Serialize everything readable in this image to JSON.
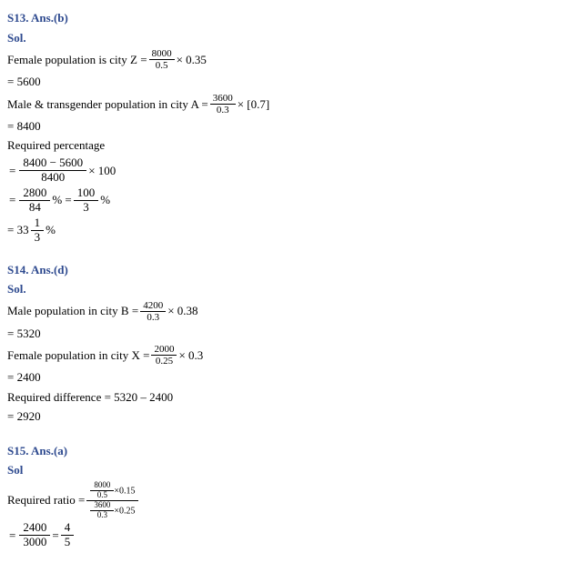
{
  "s13": {
    "heading": "S13. Ans.(b)",
    "sol": "Sol.",
    "line1_a": "Female population is city Z = ",
    "line1_frac_num": "8000",
    "line1_frac_den": "0.5",
    "line1_b": " × 0.35",
    "line2": "= 5600",
    "line3_a": "Male & transgender population in city A = ",
    "line3_frac_num": "3600",
    "line3_frac_den": "0.3",
    "line3_b": " × [0.7]",
    "line4": "= 8400",
    "line5": "Required percentage",
    "line6_eq": "= ",
    "line6_frac_num": "8400 − 5600",
    "line6_frac_den": "8400",
    "line6_b": " × 100",
    "line7_eq": "= ",
    "line7_frac1_num": "2800",
    "line7_frac1_den": "84",
    "line7_mid": "% = ",
    "line7_frac2_num": "100",
    "line7_frac2_den": "3",
    "line7_end": " %",
    "line8_a": "= 33",
    "line8_frac_num": "1",
    "line8_frac_den": "3",
    "line8_b": " %"
  },
  "s14": {
    "heading": "S14. Ans.(d)",
    "sol": "Sol.",
    "line1_a": "Male population in city B = ",
    "line1_frac_num": "4200",
    "line1_frac_den": "0.3",
    "line1_b": " × 0.38",
    "line2": "= 5320",
    "line3_a": "Female population in city X = ",
    "line3_frac_num": "2000",
    "line3_frac_den": "0.25",
    "line3_b": " × 0.3",
    "line4": "= 2400",
    "line5": "Required difference = 5320 – 2400",
    "line6": "= 2920"
  },
  "s15": {
    "heading": "S15. Ans.(a)",
    "sol": "Sol",
    "line1_a": "Required ratio = ",
    "nested_num_frac_num": "8000",
    "nested_num_frac_den": "0.5",
    "nested_num_tail": "×0.15",
    "nested_den_frac_num": "3600",
    "nested_den_frac_den": "0.3",
    "nested_den_tail": "×0.25",
    "line2_eq": "= ",
    "line2_frac1_num": "2400",
    "line2_frac1_den": "3000",
    "line2_mid": " = ",
    "line2_frac2_num": "4",
    "line2_frac2_den": "5"
  }
}
